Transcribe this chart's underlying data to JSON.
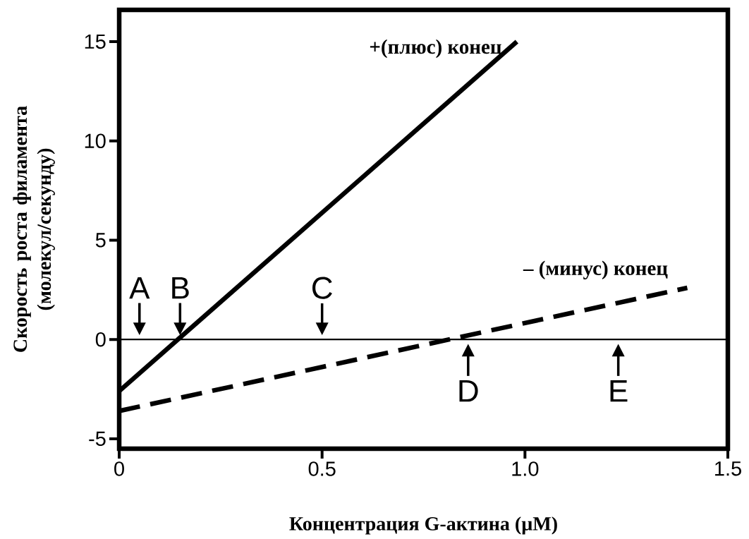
{
  "chart_data": {
    "type": "line",
    "xlabel": "Концентрация G-актина (µM)",
    "ylabel": "Скорость роста филамента (молекул/секунду)",
    "xlim": [
      0,
      1.5
    ],
    "ylim": [
      -5.5,
      16.6
    ],
    "xticks": [
      0,
      0.5,
      {
        "value": 1,
        "label": "1.0"
      },
      1.5
    ],
    "yticks": [
      -5,
      0,
      5,
      10,
      15
    ],
    "marker": "none",
    "series": [
      {
        "name": "+(плюс) конец",
        "color": "#000000",
        "line_style": "solid",
        "x": [
          0,
          0.98
        ],
        "values": [
          -2.6,
          15
        ]
      },
      {
        "name": "– (минус) конец",
        "color": "#000000",
        "line_style": "dashed",
        "x": [
          0,
          1.4
        ],
        "values": [
          -3.6,
          2.6
        ]
      }
    ],
    "ref_lines": [
      {
        "axis": "y",
        "value": 0,
        "color": "#000000"
      }
    ],
    "annotations": [
      {
        "text": "A",
        "x": 0.05,
        "y": 0
      },
      {
        "text": "B",
        "x": 0.15,
        "y": 0
      },
      {
        "text": "C",
        "x": 0.5,
        "y": 0
      },
      {
        "text": "D",
        "x": 0.86,
        "y": 0
      },
      {
        "text": "E",
        "x": 1.23,
        "y": 0
      }
    ]
  }
}
